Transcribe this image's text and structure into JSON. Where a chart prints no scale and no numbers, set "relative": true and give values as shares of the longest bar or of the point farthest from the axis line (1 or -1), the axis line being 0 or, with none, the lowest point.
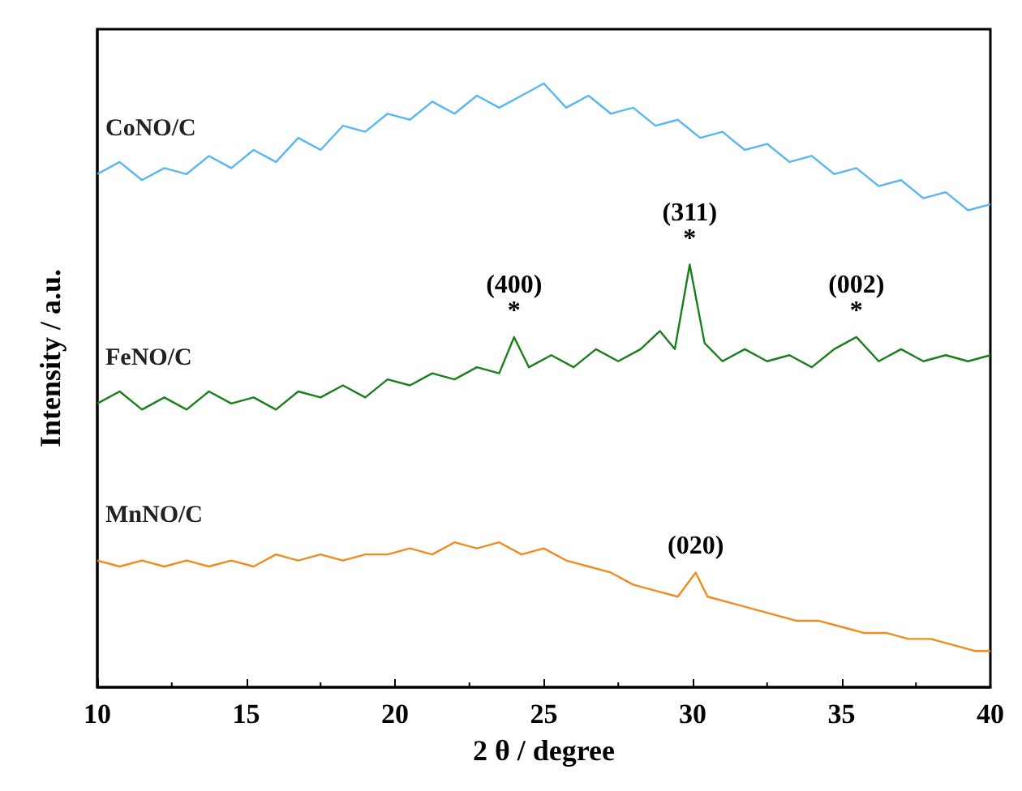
{
  "chart_data": {
    "type": "line",
    "relative": true,
    "xlabel": "2 θ / degree",
    "ylabel": "Intensity / a.u.",
    "xlim": [
      10,
      40
    ],
    "xticks": [
      10,
      15,
      20,
      25,
      30,
      35,
      40
    ],
    "grid": false,
    "marker": "none",
    "line_style": "solid",
    "series": [
      {
        "name": "CoNO/C",
        "color": "#58b6f2",
        "x": [
          10,
          10.75,
          11.5,
          12.25,
          13,
          13.75,
          14.5,
          15.25,
          16,
          16.75,
          17.5,
          18.25,
          19,
          19.75,
          20.5,
          21.25,
          22,
          22.75,
          23.5,
          24.25,
          25,
          25.75,
          26.5,
          27.25,
          28,
          28.75,
          29.5,
          30.25,
          31,
          31.75,
          32.5,
          33.25,
          34,
          34.75,
          35.5,
          36.25,
          37,
          37.75,
          38.5,
          39.25,
          40
        ],
        "values": [
          0.85,
          0.87,
          0.84,
          0.86,
          0.85,
          0.88,
          0.86,
          0.89,
          0.87,
          0.91,
          0.89,
          0.93,
          0.92,
          0.95,
          0.94,
          0.97,
          0.95,
          0.98,
          0.96,
          0.98,
          1.0,
          0.96,
          0.98,
          0.95,
          0.96,
          0.93,
          0.94,
          0.91,
          0.92,
          0.89,
          0.9,
          0.87,
          0.88,
          0.85,
          0.86,
          0.83,
          0.84,
          0.81,
          0.82,
          0.79,
          0.8
        ]
      },
      {
        "name": "FeNO/C",
        "color": "#1a7f1a",
        "x": [
          10,
          10.75,
          11.5,
          12.25,
          13,
          13.75,
          14.5,
          15.25,
          16,
          16.75,
          17.5,
          18.25,
          19,
          19.75,
          20.5,
          21.25,
          22,
          22.75,
          23.5,
          24,
          24.5,
          25.25,
          26,
          26.75,
          27.5,
          28.25,
          28.9,
          29.4,
          29.9,
          30.4,
          31,
          31.75,
          32.5,
          33.25,
          34,
          34.75,
          35.5,
          36.25,
          37,
          37.75,
          38.5,
          39.25,
          40
        ],
        "values": [
          0.47,
          0.49,
          0.46,
          0.48,
          0.46,
          0.49,
          0.47,
          0.48,
          0.46,
          0.49,
          0.48,
          0.5,
          0.48,
          0.51,
          0.5,
          0.52,
          0.51,
          0.53,
          0.52,
          0.58,
          0.53,
          0.55,
          0.53,
          0.56,
          0.54,
          0.56,
          0.59,
          0.56,
          0.7,
          0.57,
          0.54,
          0.56,
          0.54,
          0.55,
          0.53,
          0.56,
          0.58,
          0.54,
          0.56,
          0.54,
          0.55,
          0.54,
          0.55
        ]
      },
      {
        "name": "MnNO/C",
        "color": "#f28a1e",
        "x": [
          10,
          10.75,
          11.5,
          12.25,
          13,
          13.75,
          14.5,
          15.25,
          16,
          16.75,
          17.5,
          18.25,
          19,
          19.75,
          20.5,
          21.25,
          22,
          22.75,
          23.5,
          24.25,
          25,
          25.75,
          26.5,
          27.25,
          28,
          28.75,
          29.5,
          30.1,
          30.5,
          31.25,
          32,
          32.75,
          33.5,
          34.25,
          35,
          35.75,
          36.5,
          37.25,
          38,
          38.75,
          39.5,
          40
        ],
        "values": [
          0.21,
          0.2,
          0.21,
          0.2,
          0.21,
          0.2,
          0.21,
          0.2,
          0.22,
          0.21,
          0.22,
          0.21,
          0.22,
          0.22,
          0.23,
          0.22,
          0.24,
          0.23,
          0.24,
          0.22,
          0.23,
          0.21,
          0.2,
          0.19,
          0.17,
          0.16,
          0.15,
          0.19,
          0.15,
          0.14,
          0.13,
          0.12,
          0.11,
          0.11,
          0.1,
          0.09,
          0.09,
          0.08,
          0.08,
          0.07,
          0.06,
          0.06
        ]
      }
    ],
    "annotations": [
      {
        "text": "*",
        "x": 24,
        "y": 0.58
      },
      {
        "text": "(400)",
        "x": 24,
        "y": 0.58
      },
      {
        "text": "*",
        "x": 29.9,
        "y": 0.7
      },
      {
        "text": "(311)",
        "x": 29.9,
        "y": 0.7
      },
      {
        "text": "*",
        "x": 35.5,
        "y": 0.58
      },
      {
        "text": "(002)",
        "x": 35.5,
        "y": 0.58
      },
      {
        "text": "(020)",
        "x": 30.1,
        "y": 0.19
      }
    ]
  }
}
